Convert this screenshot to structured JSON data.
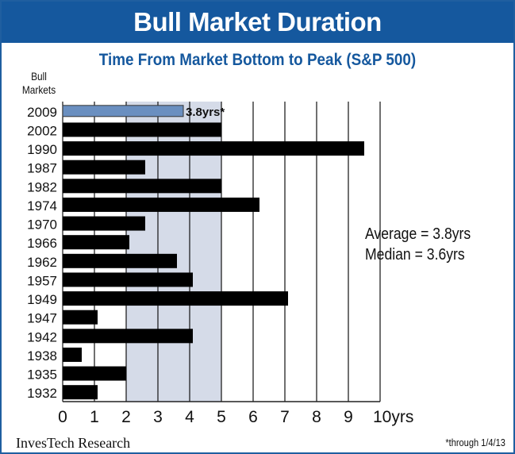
{
  "chart_data": {
    "type": "bar",
    "orientation": "horizontal",
    "title": "Bull Market Duration",
    "subtitle": "Time From Market Bottom to Peak (S&P 500)",
    "ylabel": "Bull Markets",
    "xlabel": "",
    "categories": [
      "2009",
      "2002",
      "1990",
      "1987",
      "1982",
      "1974",
      "1970",
      "1966",
      "1962",
      "1957",
      "1949",
      "1947",
      "1942",
      "1938",
      "1935",
      "1932"
    ],
    "values": [
      3.8,
      5.0,
      9.5,
      2.6,
      5.0,
      6.2,
      2.6,
      2.1,
      3.6,
      4.1,
      7.1,
      1.1,
      4.1,
      0.6,
      2.0,
      1.1
    ],
    "highlight_index": 0,
    "highlight_label": "3.8yrs*",
    "xlim": [
      0,
      10
    ],
    "xticks": [
      "0",
      "1",
      "2",
      "3",
      "4",
      "5",
      "6",
      "7",
      "8",
      "9",
      "10yrs"
    ],
    "shaded_range": [
      2,
      5
    ],
    "grid": true,
    "annotations": [
      "Average = 3.8yrs",
      "Median  = 3.6yrs"
    ],
    "colors": {
      "bar": "#000000",
      "highlight": "#6a8fc0",
      "shade": "#d5dbe8",
      "header": "#15589e"
    }
  },
  "footer": {
    "source": "InvesTech Research",
    "note": "*through 1/4/13"
  }
}
